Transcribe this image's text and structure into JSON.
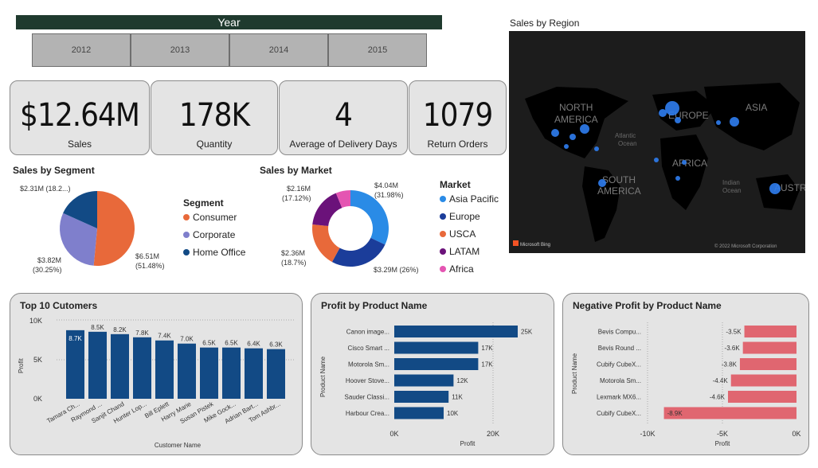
{
  "year_slicer": {
    "title": "Year",
    "options": [
      "2012",
      "2013",
      "2014",
      "2015"
    ]
  },
  "kpis": [
    {
      "value": "$12.64M",
      "label": "Sales"
    },
    {
      "value": "178K",
      "label": "Quantity"
    },
    {
      "value": "4",
      "label": "Average of Delivery Days"
    },
    {
      "value": "1079",
      "label": "Return Orders"
    }
  ],
  "segment": {
    "title": "Sales by Segment",
    "legend_title": "Segment",
    "legend": [
      "Consumer",
      "Corporate",
      "Home Office"
    ],
    "labels": {
      "consumer": [
        "$6.51M",
        "(51.48%)"
      ],
      "corporate": [
        "$3.82M",
        "(30.25%)"
      ],
      "home": [
        "$2.31M (18.2...)"
      ]
    },
    "colors": {
      "consumer": "#e8693a",
      "corporate": "#7f7fcc",
      "home": "#124a85"
    }
  },
  "market": {
    "title": "Sales by Market",
    "legend_title": "Market",
    "legend": [
      "Asia Pacific",
      "Europe",
      "USCA",
      "LATAM",
      "Africa"
    ],
    "labels": {
      "asia": [
        "$4.04M",
        "(31.98%)"
      ],
      "europe": [
        "$3.29M (26%)"
      ],
      "usca": [
        "$2.36M",
        "(18.7%)"
      ],
      "latam": [
        "$2.16M",
        "(17.12%)"
      ]
    },
    "colors": {
      "asia": "#2a8be6",
      "europe": "#1b3d9a",
      "usca": "#e8693a",
      "latam": "#6b127a",
      "africa": "#e455b2"
    }
  },
  "map": {
    "title": "Sales by Region",
    "labels": [
      "NORTH",
      "AMERICA",
      "EUROPE",
      "ASIA",
      "AFRICA",
      "SOUTH",
      "AMERICA",
      "AUSTRA",
      "Atlantic",
      "Ocean",
      "Indian",
      "Ocean"
    ],
    "attribution_left": "Microsoft Bing",
    "attribution_right": "© 2022 Microsoft Corporation"
  },
  "top10": {
    "title": "Top 10 Cutomers",
    "xlabel": "Customer Name",
    "ylabel": "Profit",
    "ticks": [
      "10K",
      "5K",
      "0K"
    ]
  },
  "profit_product": {
    "title": "Profit by Product Name",
    "xlabel": "Profit",
    "ylabel": "Product Name",
    "ticks": [
      "0K",
      "20K"
    ]
  },
  "neg_profit": {
    "title": "Negative Profit by Product Name",
    "xlabel": "Profit",
    "ylabel": "Product Name",
    "ticks": [
      "-10K",
      "-5K",
      "0K"
    ]
  },
  "chart_data": [
    {
      "type": "bar",
      "title": "Top 10 Cutomers",
      "xlabel": "Customer Name",
      "ylabel": "Profit",
      "categories": [
        "Tamara Ch...",
        "Raymond ...",
        "Sanjit Chand",
        "Hunter Lop...",
        "Bill Eplett",
        "Harry Marie",
        "Susan Pistek",
        "Mike Gock...",
        "Adrian Bart...",
        "Tom Ashbr..."
      ],
      "values": [
        8700,
        8500,
        8200,
        7800,
        7400,
        7000,
        6500,
        6500,
        6400,
        6300
      ],
      "data_labels": [
        "8.7K",
        "8.5K",
        "8.2K",
        "7.8K",
        "7.4K",
        "7.0K",
        "6.5K",
        "6.5K",
        "6.4K",
        "6.3K"
      ],
      "ylim": [
        0,
        10000
      ],
      "color": "#124a85"
    },
    {
      "type": "bar",
      "orientation": "horizontal",
      "title": "Profit by Product Name",
      "xlabel": "Profit",
      "ylabel": "Product Name",
      "categories": [
        "Canon image...",
        "Cisco Smart ...",
        "Motorola Sm...",
        "Hoover Stove...",
        "Sauder Classi...",
        "Harbour Crea..."
      ],
      "values": [
        25000,
        17000,
        17000,
        12000,
        11000,
        10000
      ],
      "data_labels": [
        "25K",
        "17K",
        "17K",
        "12K",
        "11K",
        "10K"
      ],
      "xlim": [
        0,
        25000
      ],
      "color": "#124a85"
    },
    {
      "type": "bar",
      "orientation": "horizontal",
      "title": "Negative Profit by Product Name",
      "xlabel": "Profit",
      "ylabel": "Product Name",
      "categories": [
        "Bevis Compu...",
        "Bevis Round ...",
        "Cubify CubeX...",
        "Motorola Sm...",
        "Lexmark MX6...",
        "Cubify CubeX..."
      ],
      "values": [
        -3500,
        -3600,
        -3800,
        -4400,
        -4600,
        -8900
      ],
      "data_labels": [
        "-3.5K",
        "-3.6K",
        "-3.8K",
        "-4.4K",
        "-4.6K",
        "-8.9K"
      ],
      "xlim": [
        -10000,
        0
      ],
      "color": "#e06670"
    },
    {
      "type": "pie",
      "title": "Sales by Segment",
      "categories": [
        "Consumer",
        "Corporate",
        "Home Office"
      ],
      "values": [
        51.48,
        30.25,
        18.27
      ]
    },
    {
      "type": "pie",
      "donut": true,
      "title": "Sales by Market",
      "categories": [
        "Asia Pacific",
        "Europe",
        "USCA",
        "LATAM",
        "Africa"
      ],
      "values": [
        31.98,
        26.0,
        18.7,
        17.12,
        6.2
      ]
    }
  ]
}
